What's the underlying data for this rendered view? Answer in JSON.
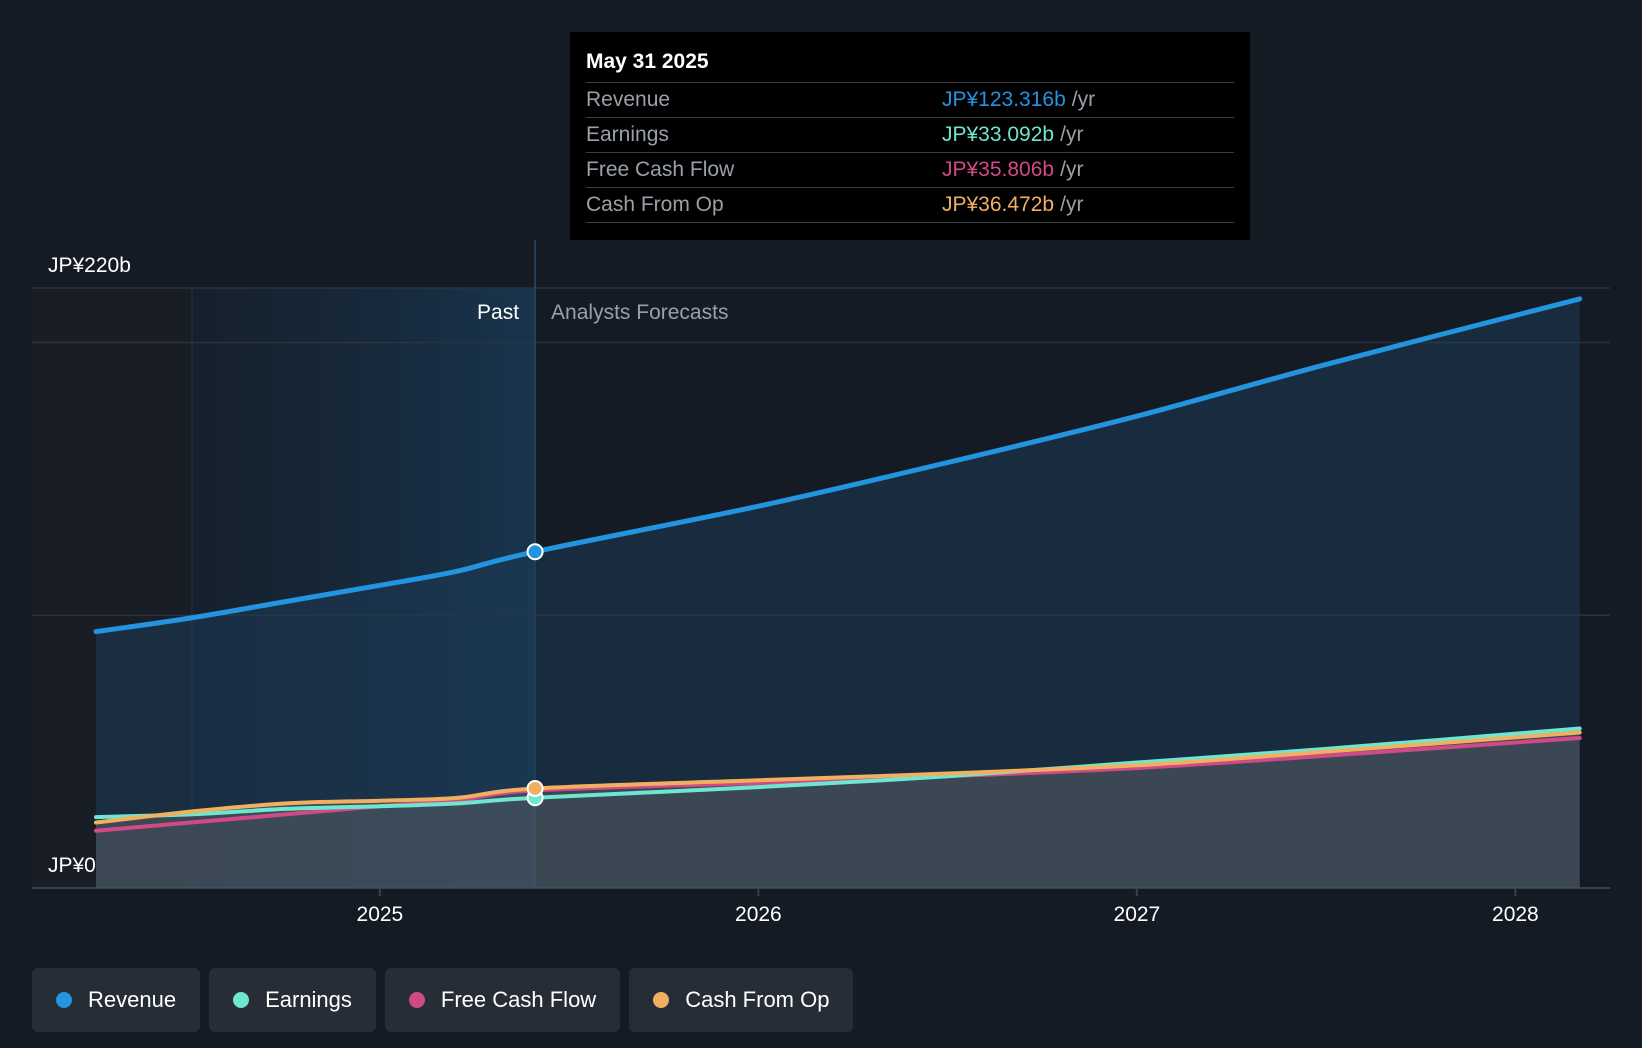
{
  "chart_data": {
    "type": "area",
    "y_axis": {
      "unit": "JP¥ b",
      "ylim": [
        0,
        220
      ],
      "labels": [
        "JP¥220b",
        "JP¥0"
      ]
    },
    "x_axis": {
      "ticks": [
        "2025",
        "2026",
        "2027",
        "2028"
      ],
      "range": [
        2024.25,
        2028.17
      ]
    },
    "sections": {
      "past_label": "Past",
      "forecast_label": "Analysts Forecasts",
      "divider_x": 2025.41
    },
    "series": [
      {
        "name": "Revenue",
        "color": "#2394df",
        "points": [
          [
            2024.25,
            94
          ],
          [
            2024.5,
            99
          ],
          [
            2024.75,
            105
          ],
          [
            2025.0,
            111
          ],
          [
            2025.2,
            116
          ],
          [
            2025.41,
            123.3
          ],
          [
            2026.0,
            140
          ],
          [
            2026.5,
            156
          ],
          [
            2027.0,
            173
          ],
          [
            2027.5,
            192
          ],
          [
            2028.17,
            216
          ]
        ]
      },
      {
        "name": "Earnings",
        "color": "#6ee6d0",
        "points": [
          [
            2024.25,
            26
          ],
          [
            2024.5,
            27
          ],
          [
            2024.75,
            29
          ],
          [
            2025.0,
            30
          ],
          [
            2025.2,
            31
          ],
          [
            2025.41,
            33.1
          ],
          [
            2026.0,
            37
          ],
          [
            2026.5,
            41
          ],
          [
            2027.0,
            46
          ],
          [
            2027.5,
            51
          ],
          [
            2028.17,
            58.5
          ]
        ]
      },
      {
        "name": "Free Cash Flow",
        "color": "#d14a88",
        "points": [
          [
            2024.25,
            21
          ],
          [
            2024.5,
            24
          ],
          [
            2024.75,
            27
          ],
          [
            2025.0,
            30
          ],
          [
            2025.2,
            32
          ],
          [
            2025.41,
            35.8
          ],
          [
            2026.0,
            38.5
          ],
          [
            2026.5,
            41
          ],
          [
            2027.0,
            44
          ],
          [
            2027.5,
            48.5
          ],
          [
            2028.17,
            55
          ]
        ]
      },
      {
        "name": "Cash From Op",
        "color": "#f0b060",
        "points": [
          [
            2024.25,
            24
          ],
          [
            2024.5,
            28
          ],
          [
            2024.75,
            31
          ],
          [
            2025.0,
            32
          ],
          [
            2025.2,
            33
          ],
          [
            2025.41,
            36.5
          ],
          [
            2026.0,
            39.5
          ],
          [
            2026.5,
            42
          ],
          [
            2027.0,
            45
          ],
          [
            2027.5,
            50
          ],
          [
            2028.17,
            57
          ]
        ]
      }
    ],
    "highlight_x": 2025.41
  },
  "tooltip": {
    "date": "May 31 2025",
    "rows": [
      {
        "label": "Revenue",
        "value": "JP¥123.316b",
        "unit": "/yr",
        "color": "#2394df"
      },
      {
        "label": "Earnings",
        "value": "JP¥33.092b",
        "unit": "/yr",
        "color": "#6ee6d0"
      },
      {
        "label": "Free Cash Flow",
        "value": "JP¥35.806b",
        "unit": "/yr",
        "color": "#d14a88"
      },
      {
        "label": "Cash From Op",
        "value": "JP¥36.472b",
        "unit": "/yr",
        "color": "#f0b060"
      }
    ]
  },
  "legend": [
    {
      "label": "Revenue",
      "color": "#2394df"
    },
    {
      "label": "Earnings",
      "color": "#6ee6d0"
    },
    {
      "label": "Free Cash Flow",
      "color": "#d14a88"
    },
    {
      "label": "Cash From Op",
      "color": "#f0b060"
    }
  ]
}
